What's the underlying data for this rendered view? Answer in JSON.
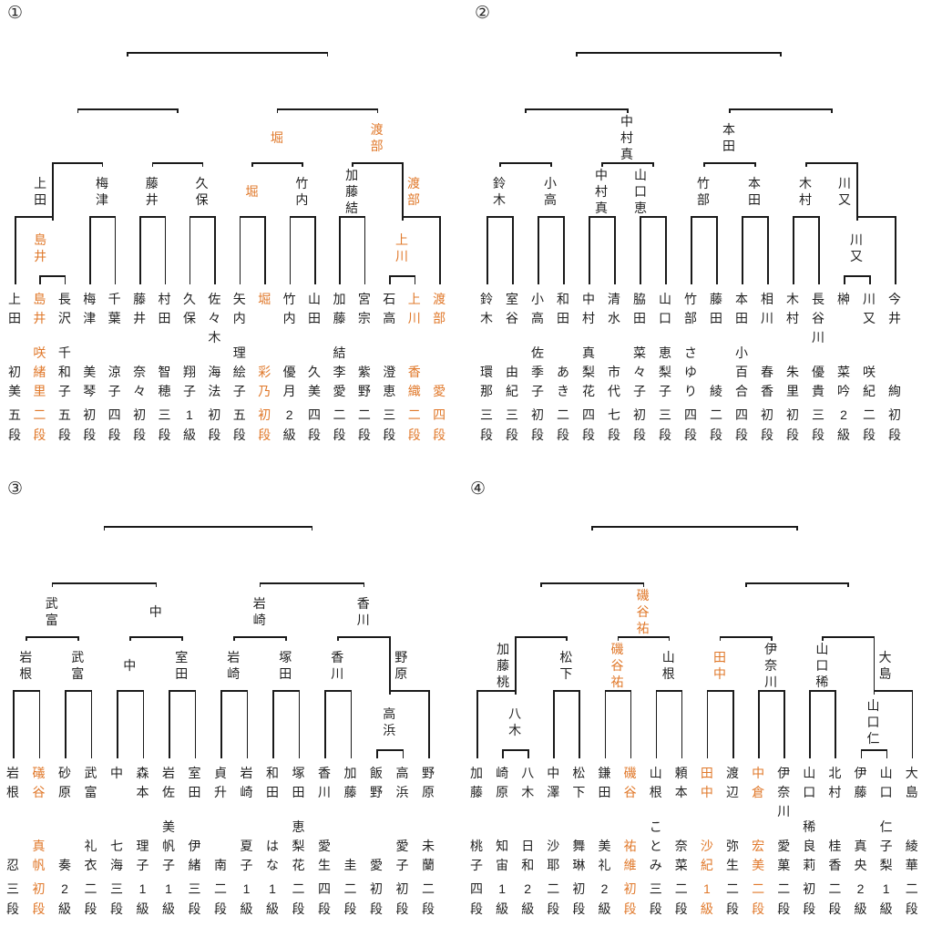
{
  "colors": {
    "highlight": "#e0782a",
    "text": "#1f1f1f",
    "line": "#1a1a1a",
    "background": "#ffffff"
  },
  "brackets": [
    {
      "label": "①",
      "players": [
        {
          "family": "上田",
          "given": "初美",
          "rank": "五段",
          "orange": false
        },
        {
          "family": "島井",
          "given": "咲緒里",
          "rank": "二段",
          "orange": true
        },
        {
          "family": "長沢",
          "given": "千和子",
          "rank": "五段",
          "orange": false
        },
        {
          "family": "梅津",
          "given": "美琴",
          "rank": "初段",
          "orange": false
        },
        {
          "family": "千葉",
          "given": "涼子",
          "rank": "四段",
          "orange": false
        },
        {
          "family": "藤井",
          "given": "奈々",
          "rank": "初段",
          "orange": false
        },
        {
          "family": "村田",
          "given": "智穂",
          "rank": "三段",
          "orange": false
        },
        {
          "family": "久保",
          "given": "翔子",
          "rank": "1級",
          "orange": false
        },
        {
          "family": "佐々木",
          "given": "海法",
          "rank": "初段",
          "orange": false
        },
        {
          "family": "矢内",
          "given": "理絵子",
          "rank": "五段",
          "orange": false
        },
        {
          "family": "堀",
          "given": "彩乃",
          "rank": "初段",
          "orange": true
        },
        {
          "family": "竹内",
          "given": "優月",
          "rank": "2級",
          "orange": false
        },
        {
          "family": "山田",
          "given": "久美",
          "rank": "四段",
          "orange": false
        },
        {
          "family": "加藤",
          "given": "結李愛",
          "rank": "二段",
          "orange": false
        },
        {
          "family": "宮宗",
          "given": "紫野",
          "rank": "二段",
          "orange": false
        },
        {
          "family": "石高",
          "given": "澄恵",
          "rank": "三段",
          "orange": false
        },
        {
          "family": "上川",
          "given": "香織",
          "rank": "二段",
          "orange": true
        },
        {
          "family": "渡部",
          "given": "愛",
          "rank": "四段",
          "orange": true
        }
      ],
      "pre_matches": [
        {
          "a": 1,
          "b": 2,
          "winner": "島井",
          "orange": true,
          "side": "L"
        },
        {
          "a": 15,
          "b": 16,
          "winner": "上川",
          "orange": true,
          "side": null
        }
      ],
      "round1": [
        {
          "slots": [
            0,
            "pre0"
          ],
          "winner": "上田",
          "orange": false,
          "side": "L"
        },
        {
          "slots": [
            3,
            4
          ],
          "winner": "梅津",
          "orange": false,
          "side": null
        },
        {
          "slots": [
            5,
            6
          ],
          "winner": "藤井",
          "orange": false,
          "side": null
        },
        {
          "slots": [
            7,
            8
          ],
          "winner": "久保",
          "orange": false,
          "side": null
        },
        {
          "slots": [
            9,
            10
          ],
          "winner": "堀",
          "orange": true,
          "side": null
        },
        {
          "slots": [
            11,
            12
          ],
          "winner": "竹内",
          "orange": false,
          "side": null
        },
        {
          "slots": [
            13,
            14
          ],
          "winner": "加藤結",
          "orange": false,
          "side": null
        },
        {
          "slots": [
            "pre1",
            17
          ],
          "winner": "渡部",
          "orange": true,
          "side": "R"
        }
      ],
      "quarterfinals": [
        {
          "winner": null,
          "orange": false
        },
        {
          "winner": null,
          "orange": false
        },
        {
          "winner": "堀",
          "orange": true
        },
        {
          "winner": "渡部",
          "orange": true
        }
      ],
      "semifinals": [
        {
          "winner": null
        },
        {
          "winner": null
        }
      ],
      "final": {
        "winner": null
      }
    },
    {
      "label": "②",
      "players": [
        {
          "family": "鈴木",
          "given": "環那",
          "rank": "三段",
          "orange": false
        },
        {
          "family": "室谷",
          "given": "由紀",
          "rank": "三段",
          "orange": false
        },
        {
          "family": "小高",
          "given": "佐季子",
          "rank": "初段",
          "orange": false
        },
        {
          "family": "和田",
          "given": "あき",
          "rank": "二段",
          "orange": false
        },
        {
          "family": "中村",
          "given": "真梨花",
          "rank": "四段",
          "orange": false
        },
        {
          "family": "清水",
          "given": "市代",
          "rank": "七段",
          "orange": false
        },
        {
          "family": "脇田",
          "given": "菜々子",
          "rank": "初段",
          "orange": false
        },
        {
          "family": "山口",
          "given": "恵梨子",
          "rank": "三段",
          "orange": false
        },
        {
          "family": "竹部",
          "given": "さゆり",
          "rank": "四段",
          "orange": false
        },
        {
          "family": "藤田",
          "given": "綾",
          "rank": "二段",
          "orange": false
        },
        {
          "family": "本田",
          "given": "小百合",
          "rank": "四段",
          "orange": false
        },
        {
          "family": "相川",
          "given": "春香",
          "rank": "初段",
          "orange": false
        },
        {
          "family": "木村",
          "given": "朱里",
          "rank": "初段",
          "orange": false
        },
        {
          "family": "長谷川",
          "given": "優貴",
          "rank": "三段",
          "orange": false
        },
        {
          "family": "榊",
          "given": "菜吟",
          "rank": "2級",
          "orange": false
        },
        {
          "family": "川又",
          "given": "咲紀",
          "rank": "二段",
          "orange": false
        },
        {
          "family": "今井",
          "given": "絢",
          "rank": "初段",
          "orange": false
        }
      ],
      "pre_matches": [
        {
          "a": 14,
          "b": 15,
          "winner": "川又",
          "orange": false,
          "side": null
        }
      ],
      "round1": [
        {
          "slots": [
            0,
            1
          ],
          "winner": "鈴木",
          "orange": false,
          "side": null
        },
        {
          "slots": [
            2,
            3
          ],
          "winner": "小高",
          "orange": false,
          "side": null
        },
        {
          "slots": [
            4,
            5
          ],
          "winner": "中村真",
          "orange": false,
          "side": null
        },
        {
          "slots": [
            6,
            7
          ],
          "winner": "山口恵",
          "orange": false,
          "side": "L"
        },
        {
          "slots": [
            8,
            9
          ],
          "winner": "竹部",
          "orange": false,
          "side": null
        },
        {
          "slots": [
            10,
            11
          ],
          "winner": "本田",
          "orange": false,
          "side": null
        },
        {
          "slots": [
            12,
            13
          ],
          "winner": "木村",
          "orange": false,
          "side": null
        },
        {
          "slots": [
            "pre0",
            16
          ],
          "winner": "川又",
          "orange": false,
          "side": "L"
        }
      ],
      "quarterfinals": [
        {
          "winner": null,
          "orange": false
        },
        {
          "winner": "中村真",
          "orange": false
        },
        {
          "winner": "本田",
          "orange": false
        },
        {
          "winner": null,
          "orange": false
        }
      ],
      "semifinals": [
        {
          "winner": null
        },
        {
          "winner": null
        }
      ],
      "final": {
        "winner": null
      }
    },
    {
      "label": "③",
      "players": [
        {
          "family": "岩根",
          "given": "忍",
          "rank": "三段",
          "orange": false
        },
        {
          "family": "礒谷",
          "given": "真帆",
          "rank": "初段",
          "orange": true
        },
        {
          "family": "砂原",
          "given": "奏",
          "rank": "2級",
          "orange": false
        },
        {
          "family": "武富",
          "given": "礼衣",
          "rank": "二段",
          "orange": false
        },
        {
          "family": "中",
          "given": "七海",
          "rank": "三段",
          "orange": false
        },
        {
          "family": "森本",
          "given": "理子",
          "rank": "1級",
          "orange": false
        },
        {
          "family": "岩佐",
          "given": "美帆子",
          "rank": "1級",
          "orange": false
        },
        {
          "family": "室田",
          "given": "伊緒",
          "rank": "三段",
          "orange": false
        },
        {
          "family": "貞升",
          "given": "南",
          "rank": "二段",
          "orange": false
        },
        {
          "family": "岩崎",
          "given": "夏子",
          "rank": "1級",
          "orange": false
        },
        {
          "family": "和田",
          "given": "はな",
          "rank": "1級",
          "orange": false
        },
        {
          "family": "塚田",
          "given": "恵梨花",
          "rank": "二段",
          "orange": false
        },
        {
          "family": "香川",
          "given": "愛生",
          "rank": "四段",
          "orange": false
        },
        {
          "family": "加藤",
          "given": "圭",
          "rank": "二段",
          "orange": false
        },
        {
          "family": "飯野",
          "given": "愛",
          "rank": "初段",
          "orange": false
        },
        {
          "family": "高浜",
          "given": "愛子",
          "rank": "初段",
          "orange": false
        },
        {
          "family": "野原",
          "given": "未蘭",
          "rank": "二段",
          "orange": false
        }
      ],
      "pre_matches": [
        {
          "a": 14,
          "b": 15,
          "winner": "高浜",
          "orange": false,
          "side": null
        }
      ],
      "round1": [
        {
          "slots": [
            0,
            1
          ],
          "winner": "岩根",
          "orange": false,
          "side": null
        },
        {
          "slots": [
            2,
            3
          ],
          "winner": "武富",
          "orange": false,
          "side": null
        },
        {
          "slots": [
            4,
            5
          ],
          "winner": "中",
          "orange": false,
          "side": null
        },
        {
          "slots": [
            6,
            7
          ],
          "winner": "室田",
          "orange": false,
          "side": null
        },
        {
          "slots": [
            8,
            9
          ],
          "winner": "岩崎",
          "orange": false,
          "side": null
        },
        {
          "slots": [
            10,
            11
          ],
          "winner": "塚田",
          "orange": false,
          "side": null
        },
        {
          "slots": [
            12,
            13
          ],
          "winner": "香川",
          "orange": false,
          "side": null
        },
        {
          "slots": [
            "pre0",
            16
          ],
          "winner": "野原",
          "orange": false,
          "side": "R"
        }
      ],
      "quarterfinals": [
        {
          "winner": "武富",
          "orange": false
        },
        {
          "winner": "中",
          "orange": false
        },
        {
          "winner": "岩崎",
          "orange": false
        },
        {
          "winner": "香川",
          "orange": false
        }
      ],
      "semifinals": [
        {
          "winner": null
        },
        {
          "winner": null
        }
      ],
      "final": {
        "winner": null
      }
    },
    {
      "label": "④",
      "players": [
        {
          "family": "加藤",
          "given": "桃子",
          "rank": "四段",
          "orange": false
        },
        {
          "family": "崎原",
          "given": "知宙",
          "rank": "1級",
          "orange": false
        },
        {
          "family": "八木",
          "given": "日和",
          "rank": "2級",
          "orange": false
        },
        {
          "family": "中澤",
          "given": "沙耶",
          "rank": "二段",
          "orange": false
        },
        {
          "family": "松下",
          "given": "舞琳",
          "rank": "初段",
          "orange": false
        },
        {
          "family": "鎌田",
          "given": "美礼",
          "rank": "2級",
          "orange": false
        },
        {
          "family": "磯谷",
          "given": "祐維",
          "rank": "初段",
          "orange": true
        },
        {
          "family": "山根",
          "given": "ことみ",
          "rank": "三段",
          "orange": false
        },
        {
          "family": "頼本",
          "given": "奈菜",
          "rank": "二段",
          "orange": false
        },
        {
          "family": "田中",
          "given": "沙紀",
          "rank": "1級",
          "orange": true
        },
        {
          "family": "渡辺",
          "given": "弥生",
          "rank": "二段",
          "orange": false
        },
        {
          "family": "中倉",
          "given": "宏美",
          "rank": "二段",
          "orange": true
        },
        {
          "family": "伊奈川",
          "given": "愛菓",
          "rank": "二段",
          "orange": false
        },
        {
          "family": "山口",
          "given": "稀良莉",
          "rank": "初段",
          "orange": false
        },
        {
          "family": "北村",
          "given": "桂香",
          "rank": "二段",
          "orange": false
        },
        {
          "family": "伊藤",
          "given": "真央",
          "rank": "2級",
          "orange": false
        },
        {
          "family": "山口",
          "given": "仁子梨",
          "rank": "1級",
          "orange": false
        },
        {
          "family": "大島",
          "given": "綾華",
          "rank": "二段",
          "orange": false
        }
      ],
      "pre_matches": [
        {
          "a": 1,
          "b": 2,
          "winner": "八木",
          "orange": false,
          "side": null
        },
        {
          "a": 15,
          "b": 16,
          "winner": "山口仁",
          "orange": false,
          "side": null
        }
      ],
      "round1": [
        {
          "slots": [
            0,
            "pre0"
          ],
          "winner": "加藤桃",
          "orange": false,
          "side": "L"
        },
        {
          "slots": [
            3,
            4
          ],
          "winner": "松下",
          "orange": false,
          "side": null
        },
        {
          "slots": [
            5,
            6
          ],
          "winner": "磯谷祐",
          "orange": true,
          "side": null
        },
        {
          "slots": [
            7,
            8
          ],
          "winner": "山根",
          "orange": false,
          "side": null
        },
        {
          "slots": [
            9,
            10
          ],
          "winner": "田中",
          "orange": true,
          "side": null
        },
        {
          "slots": [
            11,
            12
          ],
          "winner": "伊奈川",
          "orange": false,
          "side": null
        },
        {
          "slots": [
            13,
            14
          ],
          "winner": "山口稀",
          "orange": false,
          "side": null
        },
        {
          "slots": [
            "pre1",
            17
          ],
          "winner": "大島",
          "orange": false,
          "side": "R"
        }
      ],
      "quarterfinals": [
        {
          "winner": null,
          "orange": false
        },
        {
          "winner": "磯谷祐",
          "orange": true
        },
        {
          "winner": null,
          "orange": false
        },
        {
          "winner": null,
          "orange": false
        }
      ],
      "semifinals": [
        {
          "winner": null
        },
        {
          "winner": null
        }
      ],
      "final": {
        "winner": null
      }
    }
  ]
}
